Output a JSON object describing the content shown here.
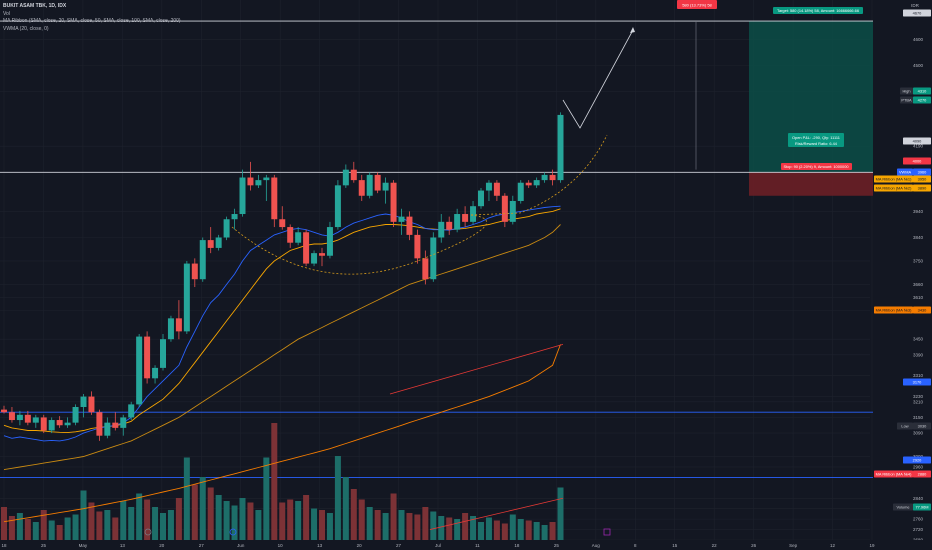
{
  "header": {
    "title": "BUKIT ASAM TBK, 1D, IDX",
    "subtitle": "Vol",
    "indicators": [
      "MA Ribbon (SMA, close, 20, SMA, close, 50, SMA, close, 100, SMA, close, 200)",
      "VWMA (20, close, 0)"
    ],
    "axis_header": "IDR"
  },
  "colors": {
    "background": "#131722",
    "up": "#26a69a",
    "down": "#ef5350",
    "vol_up": "#1d6e69",
    "vol_down": "#7c3236",
    "vwma": "#2962ff",
    "ma20": "#f7a600",
    "ma50": "#f57c00",
    "ma100": "#e53935",
    "hline_blue": "#2962ff",
    "hline_white": "#d1d4dc",
    "target_zone": "#0c4d47",
    "stop_zone": "#6b1f26"
  },
  "position": {
    "target_label": "Target: 580 (14.18%) 58, Amount: 16666666.66",
    "entry_label_1": "Open P&L: -290, Qty: 11111",
    "entry_label_2": "Risk/Reward Ratio: 6.44",
    "stop_label": "Stop: 90 (2.20%) 9, Amount: 1000000",
    "top_badge": "580 (13.73%) 58"
  },
  "price_labels": [
    {
      "text": "4670",
      "style": "white"
    },
    {
      "text": "High",
      "style": "dark"
    },
    {
      "text": "4310",
      "style": "green"
    },
    {
      "text": "PTBA",
      "style": "dark"
    },
    {
      "text": "4270",
      "style": "green"
    },
    {
      "text": "4090",
      "style": "white"
    },
    {
      "text": "4000",
      "style": "red"
    },
    {
      "text": "VWMA",
      "style": "blue"
    },
    {
      "text": "3960",
      "style": "blue"
    },
    {
      "text": "MA Ribbon (MA №1)",
      "style": "yellow"
    },
    {
      "text": "3950",
      "style": "yellow"
    },
    {
      "text": "MA Ribbon (MA №2)",
      "style": "yellow"
    },
    {
      "text": "3890",
      "style": "yellow"
    },
    {
      "text": "MA Ribbon (MA №3)",
      "style": "orange"
    },
    {
      "text": "3430",
      "style": "orange"
    },
    {
      "text": "3170",
      "style": "blue"
    },
    {
      "text": "Low",
      "style": "dark"
    },
    {
      "text": "3030",
      "style": "dark"
    },
    {
      "text": "2920",
      "style": "blue"
    },
    {
      "text": "MA Ribbon (MA №4)",
      "style": "red"
    },
    {
      "text": "2880",
      "style": "red"
    },
    {
      "text": "Volume",
      "style": "dark"
    },
    {
      "text": "77.96M",
      "style": "green"
    }
  ],
  "chart_data": {
    "type": "candlestick",
    "title": "BUKIT ASAM TBK, 1D, IDX",
    "y_axis": {
      "ticks": [
        4600,
        4500,
        4400,
        4190,
        4090,
        3940,
        3840,
        3750,
        3660,
        3610,
        3560,
        3450,
        3390,
        3310,
        3230,
        3210,
        3150,
        3090,
        3000,
        2960,
        2840,
        2800,
        2760,
        2720,
        2680
      ],
      "range": [
        2680,
        4720
      ]
    },
    "x_axis": {
      "ticks": [
        "18",
        "25",
        "May",
        "13",
        "20",
        "27",
        "Jun",
        "10",
        "13",
        "20",
        "27",
        "Jul",
        "11",
        "18",
        "25",
        "Aug",
        "8",
        "15",
        "22",
        "26",
        "Sep",
        "12",
        "19"
      ]
    },
    "candles": [
      {
        "o": 3180,
        "h": 3195,
        "l": 3165,
        "c": 3170
      },
      {
        "o": 3170,
        "h": 3190,
        "l": 3130,
        "c": 3140
      },
      {
        "o": 3140,
        "h": 3175,
        "l": 3120,
        "c": 3160
      },
      {
        "o": 3160,
        "h": 3175,
        "l": 3120,
        "c": 3130
      },
      {
        "o": 3130,
        "h": 3160,
        "l": 3110,
        "c": 3150
      },
      {
        "o": 3150,
        "h": 3160,
        "l": 3090,
        "c": 3100
      },
      {
        "o": 3100,
        "h": 3150,
        "l": 3090,
        "c": 3140
      },
      {
        "o": 3140,
        "h": 3155,
        "l": 3110,
        "c": 3120
      },
      {
        "o": 3120,
        "h": 3150,
        "l": 3110,
        "c": 3130
      },
      {
        "o": 3130,
        "h": 3200,
        "l": 3120,
        "c": 3190
      },
      {
        "o": 3190,
        "h": 3240,
        "l": 3150,
        "c": 3230
      },
      {
        "o": 3230,
        "h": 3250,
        "l": 3160,
        "c": 3170
      },
      {
        "o": 3170,
        "h": 3180,
        "l": 3060,
        "c": 3080
      },
      {
        "o": 3080,
        "h": 3150,
        "l": 3070,
        "c": 3130
      },
      {
        "o": 3130,
        "h": 3170,
        "l": 3100,
        "c": 3110
      },
      {
        "o": 3110,
        "h": 3160,
        "l": 3080,
        "c": 3150
      },
      {
        "o": 3150,
        "h": 3210,
        "l": 3140,
        "c": 3200
      },
      {
        "o": 3200,
        "h": 3470,
        "l": 3190,
        "c": 3460
      },
      {
        "o": 3460,
        "h": 3480,
        "l": 3280,
        "c": 3300
      },
      {
        "o": 3300,
        "h": 3350,
        "l": 3280,
        "c": 3340
      },
      {
        "o": 3340,
        "h": 3470,
        "l": 3330,
        "c": 3450
      },
      {
        "o": 3450,
        "h": 3540,
        "l": 3440,
        "c": 3530
      },
      {
        "o": 3530,
        "h": 3600,
        "l": 3450,
        "c": 3480
      },
      {
        "o": 3480,
        "h": 3750,
        "l": 3470,
        "c": 3740
      },
      {
        "o": 3740,
        "h": 3760,
        "l": 3650,
        "c": 3680
      },
      {
        "o": 3680,
        "h": 3840,
        "l": 3670,
        "c": 3830
      },
      {
        "o": 3830,
        "h": 3880,
        "l": 3780,
        "c": 3800
      },
      {
        "o": 3800,
        "h": 3850,
        "l": 3790,
        "c": 3840
      },
      {
        "o": 3840,
        "h": 3920,
        "l": 3830,
        "c": 3910
      },
      {
        "o": 3910,
        "h": 3950,
        "l": 3870,
        "c": 3930
      },
      {
        "o": 3930,
        "h": 4100,
        "l": 3920,
        "c": 4070
      },
      {
        "o": 4070,
        "h": 4130,
        "l": 4020,
        "c": 4040
      },
      {
        "o": 4040,
        "h": 4080,
        "l": 4030,
        "c": 4060
      },
      {
        "o": 4060,
        "h": 4080,
        "l": 3980,
        "c": 4070
      },
      {
        "o": 4070,
        "h": 4080,
        "l": 3880,
        "c": 3910
      },
      {
        "o": 3910,
        "h": 3960,
        "l": 3870,
        "c": 3880
      },
      {
        "o": 3880,
        "h": 3890,
        "l": 3800,
        "c": 3820
      },
      {
        "o": 3820,
        "h": 3880,
        "l": 3810,
        "c": 3860
      },
      {
        "o": 3860,
        "h": 3870,
        "l": 3730,
        "c": 3740
      },
      {
        "o": 3740,
        "h": 3790,
        "l": 3730,
        "c": 3780
      },
      {
        "o": 3780,
        "h": 3800,
        "l": 3730,
        "c": 3770
      },
      {
        "o": 3770,
        "h": 3900,
        "l": 3760,
        "c": 3880
      },
      {
        "o": 3880,
        "h": 4060,
        "l": 3870,
        "c": 4040
      },
      {
        "o": 4040,
        "h": 4120,
        "l": 4030,
        "c": 4100
      },
      {
        "o": 4100,
        "h": 4130,
        "l": 4050,
        "c": 4060
      },
      {
        "o": 4060,
        "h": 4080,
        "l": 3980,
        "c": 4000
      },
      {
        "o": 4000,
        "h": 4090,
        "l": 3990,
        "c": 4080
      },
      {
        "o": 4080,
        "h": 4090,
        "l": 4010,
        "c": 4020
      },
      {
        "o": 4020,
        "h": 4070,
        "l": 3970,
        "c": 4050
      },
      {
        "o": 4050,
        "h": 4060,
        "l": 3880,
        "c": 3900
      },
      {
        "o": 3900,
        "h": 3950,
        "l": 3850,
        "c": 3920
      },
      {
        "o": 3920,
        "h": 3940,
        "l": 3830,
        "c": 3850
      },
      {
        "o": 3850,
        "h": 3870,
        "l": 3740,
        "c": 3760
      },
      {
        "o": 3760,
        "h": 3790,
        "l": 3660,
        "c": 3680
      },
      {
        "o": 3680,
        "h": 3860,
        "l": 3670,
        "c": 3840
      },
      {
        "o": 3840,
        "h": 3930,
        "l": 3820,
        "c": 3900
      },
      {
        "o": 3900,
        "h": 3920,
        "l": 3850,
        "c": 3870
      },
      {
        "o": 3870,
        "h": 3950,
        "l": 3860,
        "c": 3930
      },
      {
        "o": 3930,
        "h": 3960,
        "l": 3880,
        "c": 3900
      },
      {
        "o": 3900,
        "h": 3980,
        "l": 3890,
        "c": 3960
      },
      {
        "o": 3960,
        "h": 4030,
        "l": 3950,
        "c": 4020
      },
      {
        "o": 4020,
        "h": 4060,
        "l": 3980,
        "c": 4050
      },
      {
        "o": 4050,
        "h": 4060,
        "l": 3980,
        "c": 4000
      },
      {
        "o": 4000,
        "h": 4010,
        "l": 3880,
        "c": 3900
      },
      {
        "o": 3900,
        "h": 4000,
        "l": 3890,
        "c": 3980
      },
      {
        "o": 3980,
        "h": 4060,
        "l": 3970,
        "c": 4050
      },
      {
        "o": 4050,
        "h": 4060,
        "l": 4030,
        "c": 4040
      },
      {
        "o": 4040,
        "h": 4070,
        "l": 4030,
        "c": 4060
      },
      {
        "o": 4060,
        "h": 4090,
        "l": 4050,
        "c": 4080
      },
      {
        "o": 4080,
        "h": 4100,
        "l": 4040,
        "c": 4060
      },
      {
        "o": 4060,
        "h": 4320,
        "l": 4050,
        "c": 4310
      }
    ],
    "volume": [
      0.22,
      0.16,
      0.18,
      0.14,
      0.12,
      0.2,
      0.13,
      0.1,
      0.15,
      0.17,
      0.33,
      0.25,
      0.19,
      0.2,
      0.15,
      0.26,
      0.22,
      0.31,
      0.27,
      0.22,
      0.18,
      0.2,
      0.28,
      0.55,
      0.37,
      0.42,
      0.35,
      0.3,
      0.26,
      0.23,
      0.28,
      0.25,
      0.2,
      0.55,
      0.78,
      0.25,
      0.27,
      0.26,
      0.3,
      0.21,
      0.2,
      0.18,
      0.56,
      0.42,
      0.34,
      0.27,
      0.22,
      0.2,
      0.18,
      0.31,
      0.2,
      0.18,
      0.17,
      0.22,
      0.19,
      0.16,
      0.15,
      0.14,
      0.18,
      0.16,
      0.12,
      0.15,
      0.13,
      0.11,
      0.17,
      0.14,
      0.13,
      0.12,
      0.1,
      0.12,
      0.35
    ],
    "vwma": [
      3080,
      3070,
      3075,
      3070,
      3065,
      3060,
      3062,
      3060,
      3065,
      3075,
      3090,
      3100,
      3110,
      3115,
      3120,
      3130,
      3150,
      3190,
      3230,
      3260,
      3290,
      3320,
      3350,
      3420,
      3480,
      3540,
      3590,
      3620,
      3660,
      3700,
      3750,
      3790,
      3810,
      3830,
      3850,
      3860,
      3870,
      3875,
      3870,
      3860,
      3850,
      3845,
      3860,
      3880,
      3895,
      3905,
      3915,
      3925,
      3930,
      3925,
      3915,
      3900,
      3890,
      3875,
      3870,
      3870,
      3868,
      3875,
      3880,
      3890,
      3900,
      3915,
      3925,
      3930,
      3935,
      3940,
      3945,
      3950,
      3955,
      3958,
      3960
    ],
    "ma1": [
      3120,
      3110,
      3105,
      3100,
      3100,
      3098,
      3095,
      3093,
      3092,
      3095,
      3100,
      3108,
      3112,
      3115,
      3118,
      3125,
      3135,
      3160,
      3180,
      3200,
      3220,
      3250,
      3280,
      3320,
      3360,
      3400,
      3440,
      3480,
      3520,
      3560,
      3600,
      3640,
      3680,
      3720,
      3750,
      3770,
      3790,
      3800,
      3810,
      3815,
      3815,
      3820,
      3830,
      3845,
      3860,
      3870,
      3880,
      3885,
      3890,
      3890,
      3888,
      3885,
      3880,
      3875,
      3872,
      3870,
      3870,
      3872,
      3875,
      3880,
      3885,
      3890,
      3898,
      3905,
      3910,
      3915,
      3920,
      3930,
      3935,
      3940,
      3950
    ],
    "ma2": [
      2950,
      2955,
      2960,
      2965,
      2970,
      2975,
      2980,
      2985,
      2990,
      2995,
      3000,
      3010,
      3020,
      3030,
      3040,
      3050,
      3060,
      3075,
      3090,
      3105,
      3120,
      3135,
      3150,
      3170,
      3190,
      3210,
      3230,
      3250,
      3270,
      3290,
      3310,
      3330,
      3350,
      3370,
      3390,
      3410,
      3430,
      3450,
      3465,
      3480,
      3495,
      3510,
      3525,
      3540,
      3555,
      3570,
      3585,
      3600,
      3615,
      3630,
      3645,
      3660,
      3670,
      3680,
      3690,
      3700,
      3710,
      3720,
      3730,
      3740,
      3750,
      3760,
      3770,
      3780,
      3790,
      3800,
      3810,
      3825,
      3840,
      3860,
      3890
    ],
    "ma3": [
      2750,
      2755,
      2760,
      2765,
      2770,
      2775,
      2780,
      2785,
      2790,
      2795,
      2800,
      2806,
      2812,
      2818,
      2824,
      2830,
      2836,
      2843,
      2850,
      2857,
      2864,
      2871,
      2878,
      2886,
      2894,
      2902,
      2910,
      2918,
      2926,
      2934,
      2942,
      2950,
      2958,
      2966,
      2974,
      2982,
      2990,
      2998,
      3006,
      3014,
      3022,
      3030,
      3040,
      3050,
      3060,
      3070,
      3080,
      3090,
      3100,
      3110,
      3120,
      3130,
      3140,
      3150,
      3160,
      3170,
      3180,
      3190,
      3200,
      3210,
      3220,
      3230,
      3242,
      3254,
      3266,
      3278,
      3290,
      3310,
      3330,
      3350,
      3430
    ],
    "horizontal_lines": [
      4670,
      4090,
      3170,
      2920
    ],
    "projection": [
      [
        4310,
        4090
      ],
      [
        4090,
        4570
      ]
    ],
    "target": 4670,
    "entry": 4090,
    "stop": 4000
  }
}
